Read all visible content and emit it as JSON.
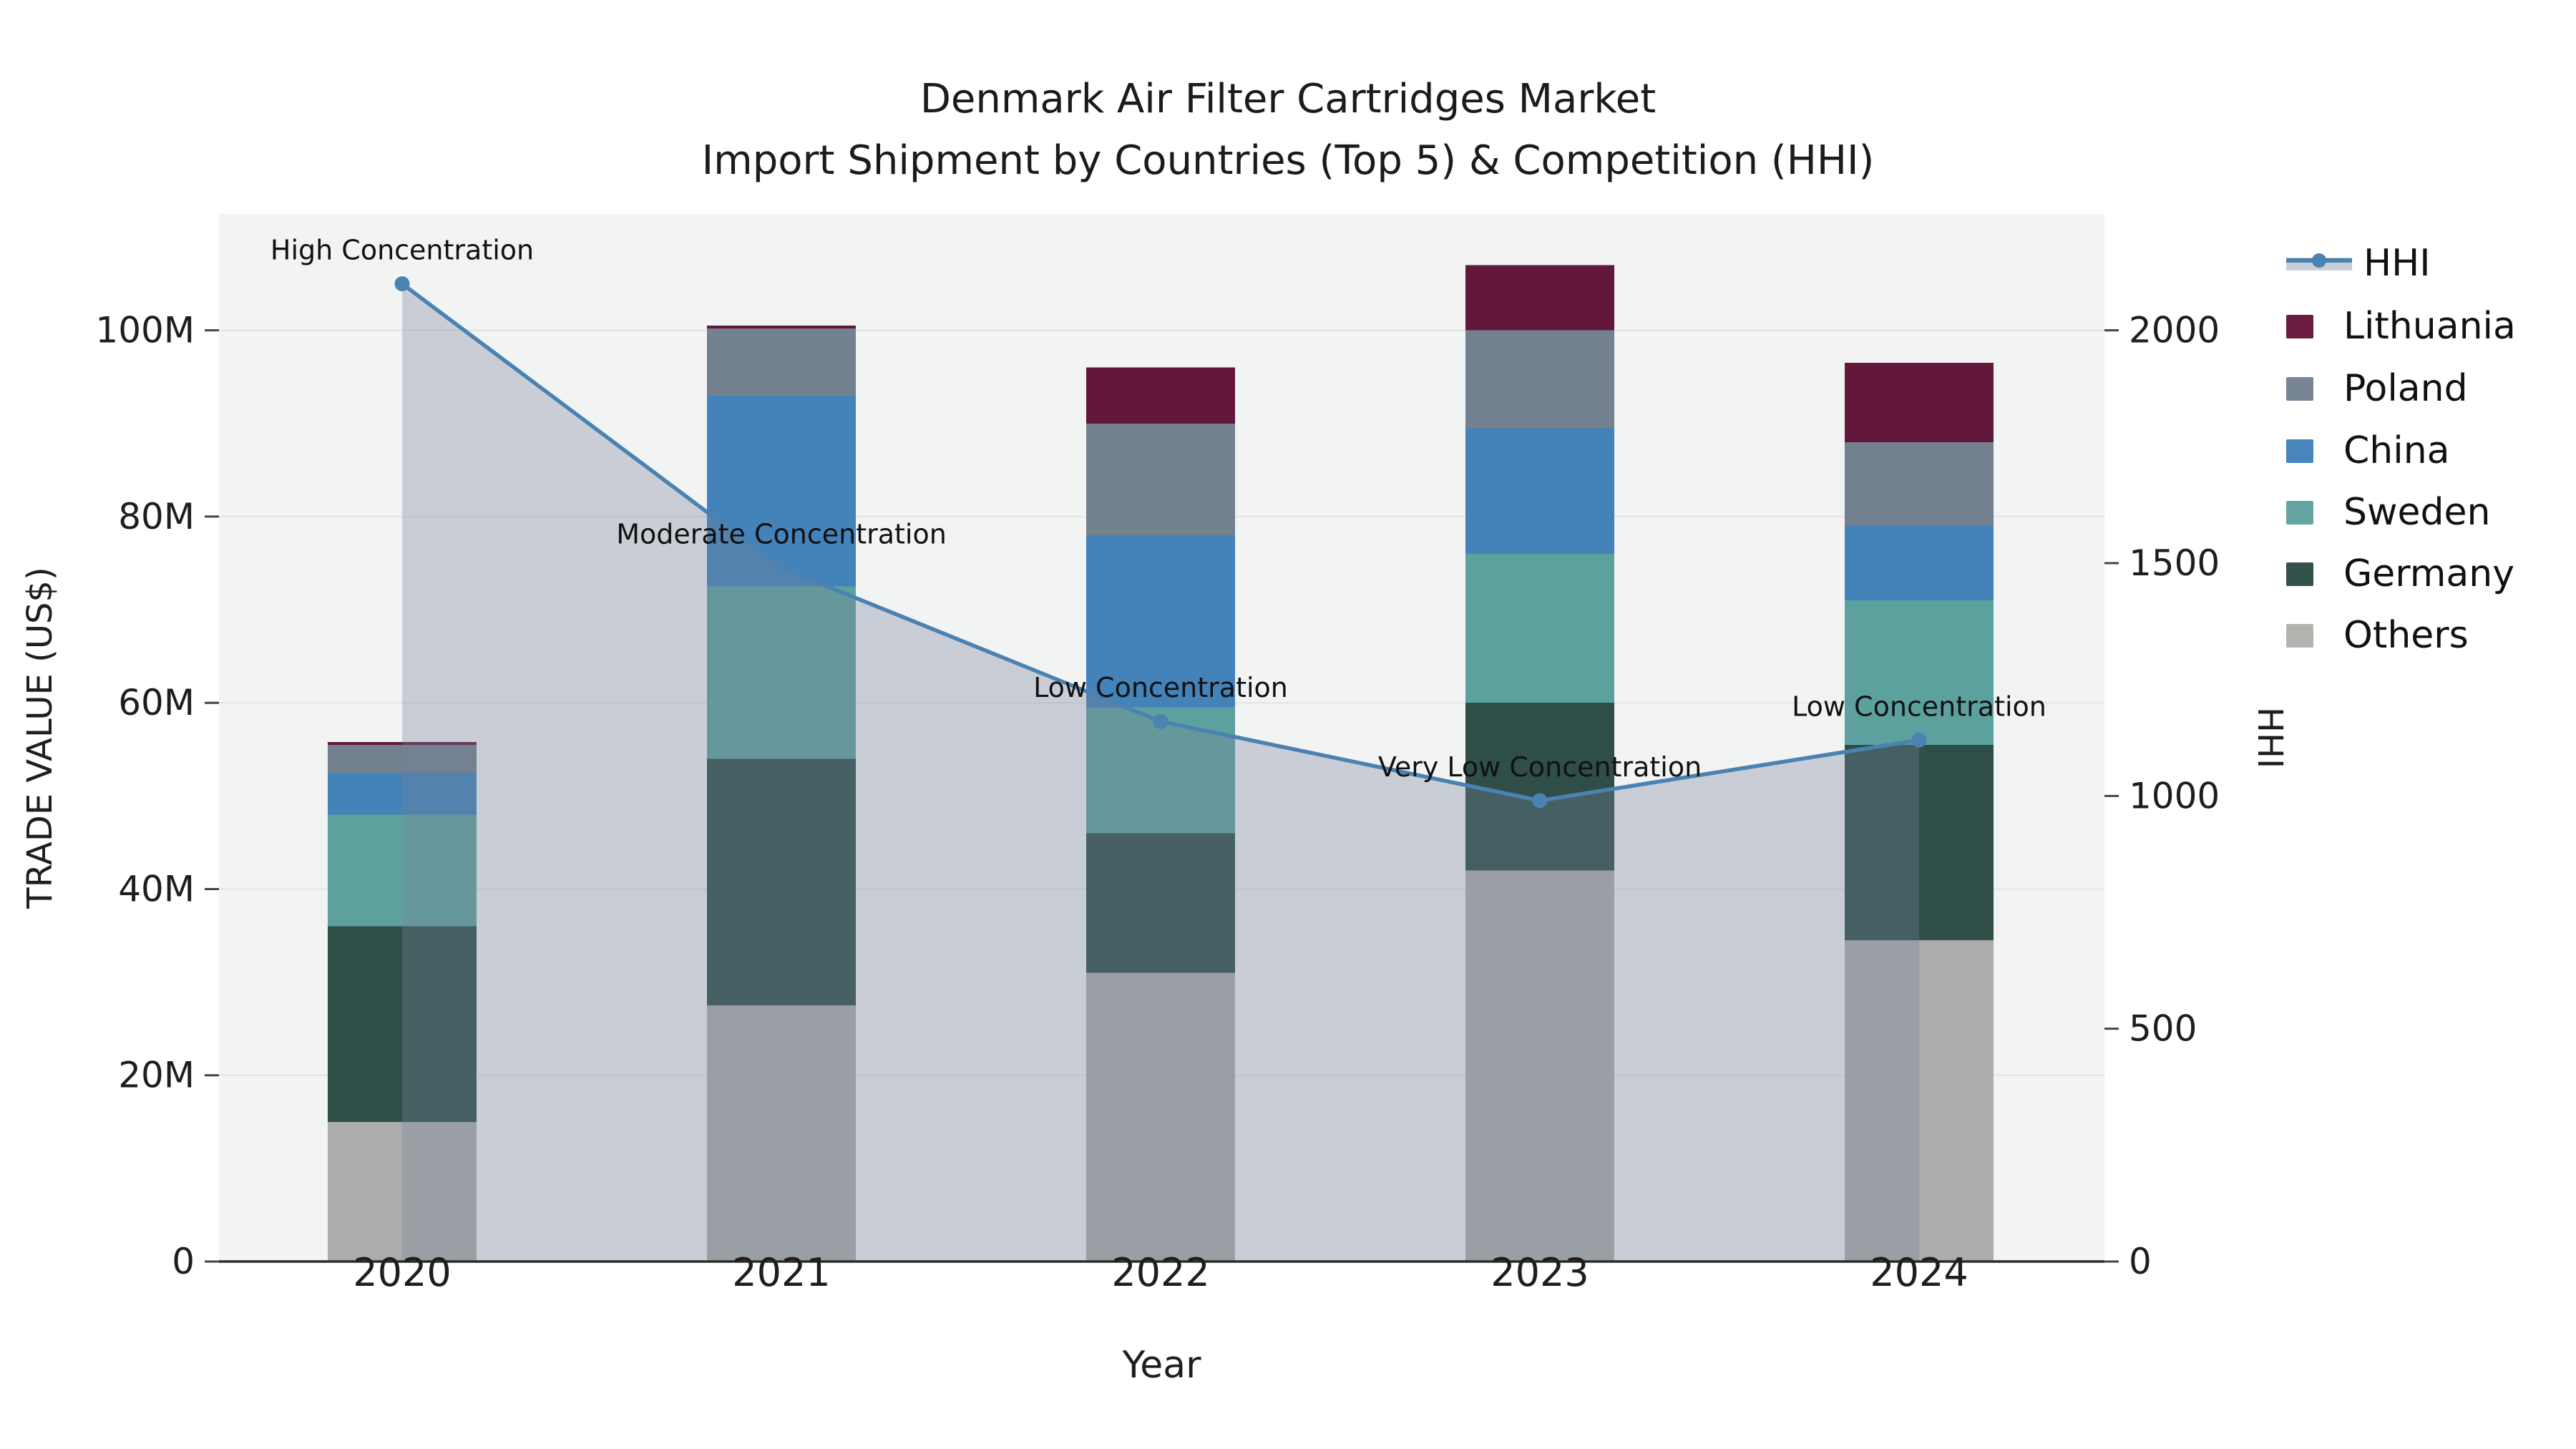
{
  "title": {
    "line1": "Denmark Air Filter Cartridges Market",
    "line2": "Import Shipment by Countries (Top 5) & Competition (HHI)"
  },
  "axes": {
    "x_label": "Year",
    "y_left_label": "TRADE VALUE (US$)",
    "y_right_label": "HHI",
    "y_left_tick_labels": [
      "0",
      "20M",
      "40M",
      "60M",
      "80M",
      "100M"
    ],
    "y_left_tick_values": [
      0,
      20,
      40,
      60,
      80,
      100
    ],
    "y_left_max": 112.5,
    "y_right_tick_labels": [
      "0",
      "500",
      "1000",
      "1500",
      "2000"
    ],
    "y_right_tick_values": [
      0,
      500,
      1000,
      1500,
      2000
    ],
    "y_right_max": 2250,
    "grid": true
  },
  "chart_data": {
    "type": "stacked-bar+line",
    "categories": [
      "2020",
      "2021",
      "2022",
      "2023",
      "2024"
    ],
    "unit": "millions USD",
    "series": [
      {
        "name": "Others",
        "color": "#acacaa",
        "values": [
          15.0,
          27.5,
          31.0,
          42.0,
          34.5
        ]
      },
      {
        "name": "Germany",
        "color": "#2e4e47",
        "values": [
          21.0,
          26.5,
          15.0,
          18.0,
          21.0
        ]
      },
      {
        "name": "Sweden",
        "color": "#5da19f",
        "values": [
          12.0,
          18.5,
          13.5,
          16.0,
          15.5
        ]
      },
      {
        "name": "China",
        "color": "#4482ba",
        "values": [
          4.5,
          20.5,
          18.5,
          13.5,
          8.0
        ]
      },
      {
        "name": "Poland",
        "color": "#73808e",
        "values": [
          3.0,
          7.2,
          12.0,
          10.5,
          9.0
        ]
      },
      {
        "name": "Lithuania",
        "color": "#63173a",
        "values": [
          0.3,
          0.3,
          6.0,
          7.0,
          8.5
        ]
      }
    ],
    "line": {
      "name": "HHI",
      "color": "#4a82b2",
      "area_fill": "rgba(118,130,154,0.33)",
      "legend_band_color": "#c9cdd5",
      "values": [
        2100,
        1490,
        1160,
        990,
        1120
      ]
    },
    "annotations": [
      {
        "year": "2020",
        "text": "High Concentration"
      },
      {
        "year": "2021",
        "text": "Moderate Concentration"
      },
      {
        "year": "2022",
        "text": "Low Concentration"
      },
      {
        "year": "2023",
        "text": "Very Low Concentration"
      },
      {
        "year": "2024",
        "text": "Low Concentration"
      }
    ],
    "plot_background": "#f2f3f3",
    "gridline_color": "#e4e6e7",
    "axis_line_color": "#2b2b2b"
  },
  "legend": {
    "items": [
      {
        "label": "HHI",
        "type": "line"
      },
      {
        "label": "Lithuania",
        "type": "patch",
        "color": "#6a1b3e"
      },
      {
        "label": "Poland",
        "type": "patch",
        "color": "#788593"
      },
      {
        "label": "China",
        "type": "patch",
        "color": "#4785bc"
      },
      {
        "label": "Sweden",
        "type": "patch",
        "color": "#64a5a1"
      },
      {
        "label": "Germany",
        "type": "patch",
        "color": "#33514b"
      },
      {
        "label": "Others",
        "type": "patch",
        "color": "#b2b4b0"
      }
    ]
  }
}
